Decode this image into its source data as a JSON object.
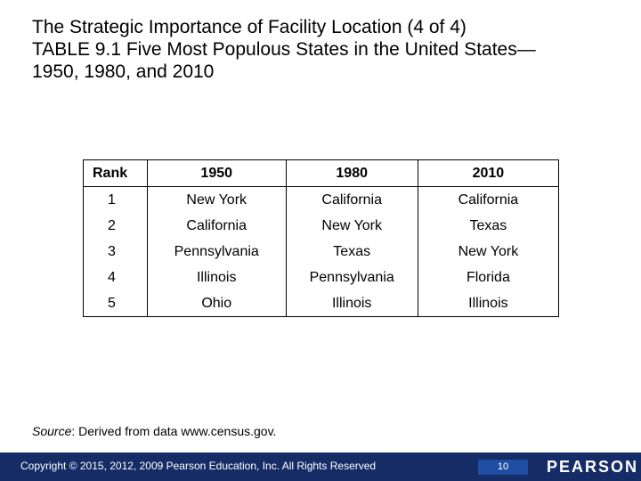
{
  "title": {
    "line1": "The Strategic Importance of Facility Location (4 of 4)",
    "line2": "TABLE 9.1 Five Most Populous States in the United States",
    "line2_dash": "—",
    "line3": "1950, 1980, and 2010"
  },
  "table": {
    "headers": [
      "Rank",
      "1950",
      "1980",
      "2010"
    ],
    "rows": [
      [
        "1",
        "New York",
        "California",
        "California"
      ],
      [
        "2",
        "California",
        "New York",
        "Texas"
      ],
      [
        "3",
        "Pennsylvania",
        "Texas",
        "New York"
      ],
      [
        "4",
        "Illinois",
        "Pennsylvania",
        "Florida"
      ],
      [
        "5",
        "Ohio",
        "Illinois",
        "Illinois"
      ]
    ]
  },
  "source": {
    "label": "Source",
    "text": ": Derived from data www.census.gov."
  },
  "footer": {
    "copyright": "Copyright © 2015, 2012, 2009 Pearson Education, Inc. All Rights Reserved",
    "page_number": "10",
    "brand": "PEARSON"
  },
  "colors": {
    "footer_bg": "#152c66",
    "page_number_bg": "#1f4ea3"
  }
}
